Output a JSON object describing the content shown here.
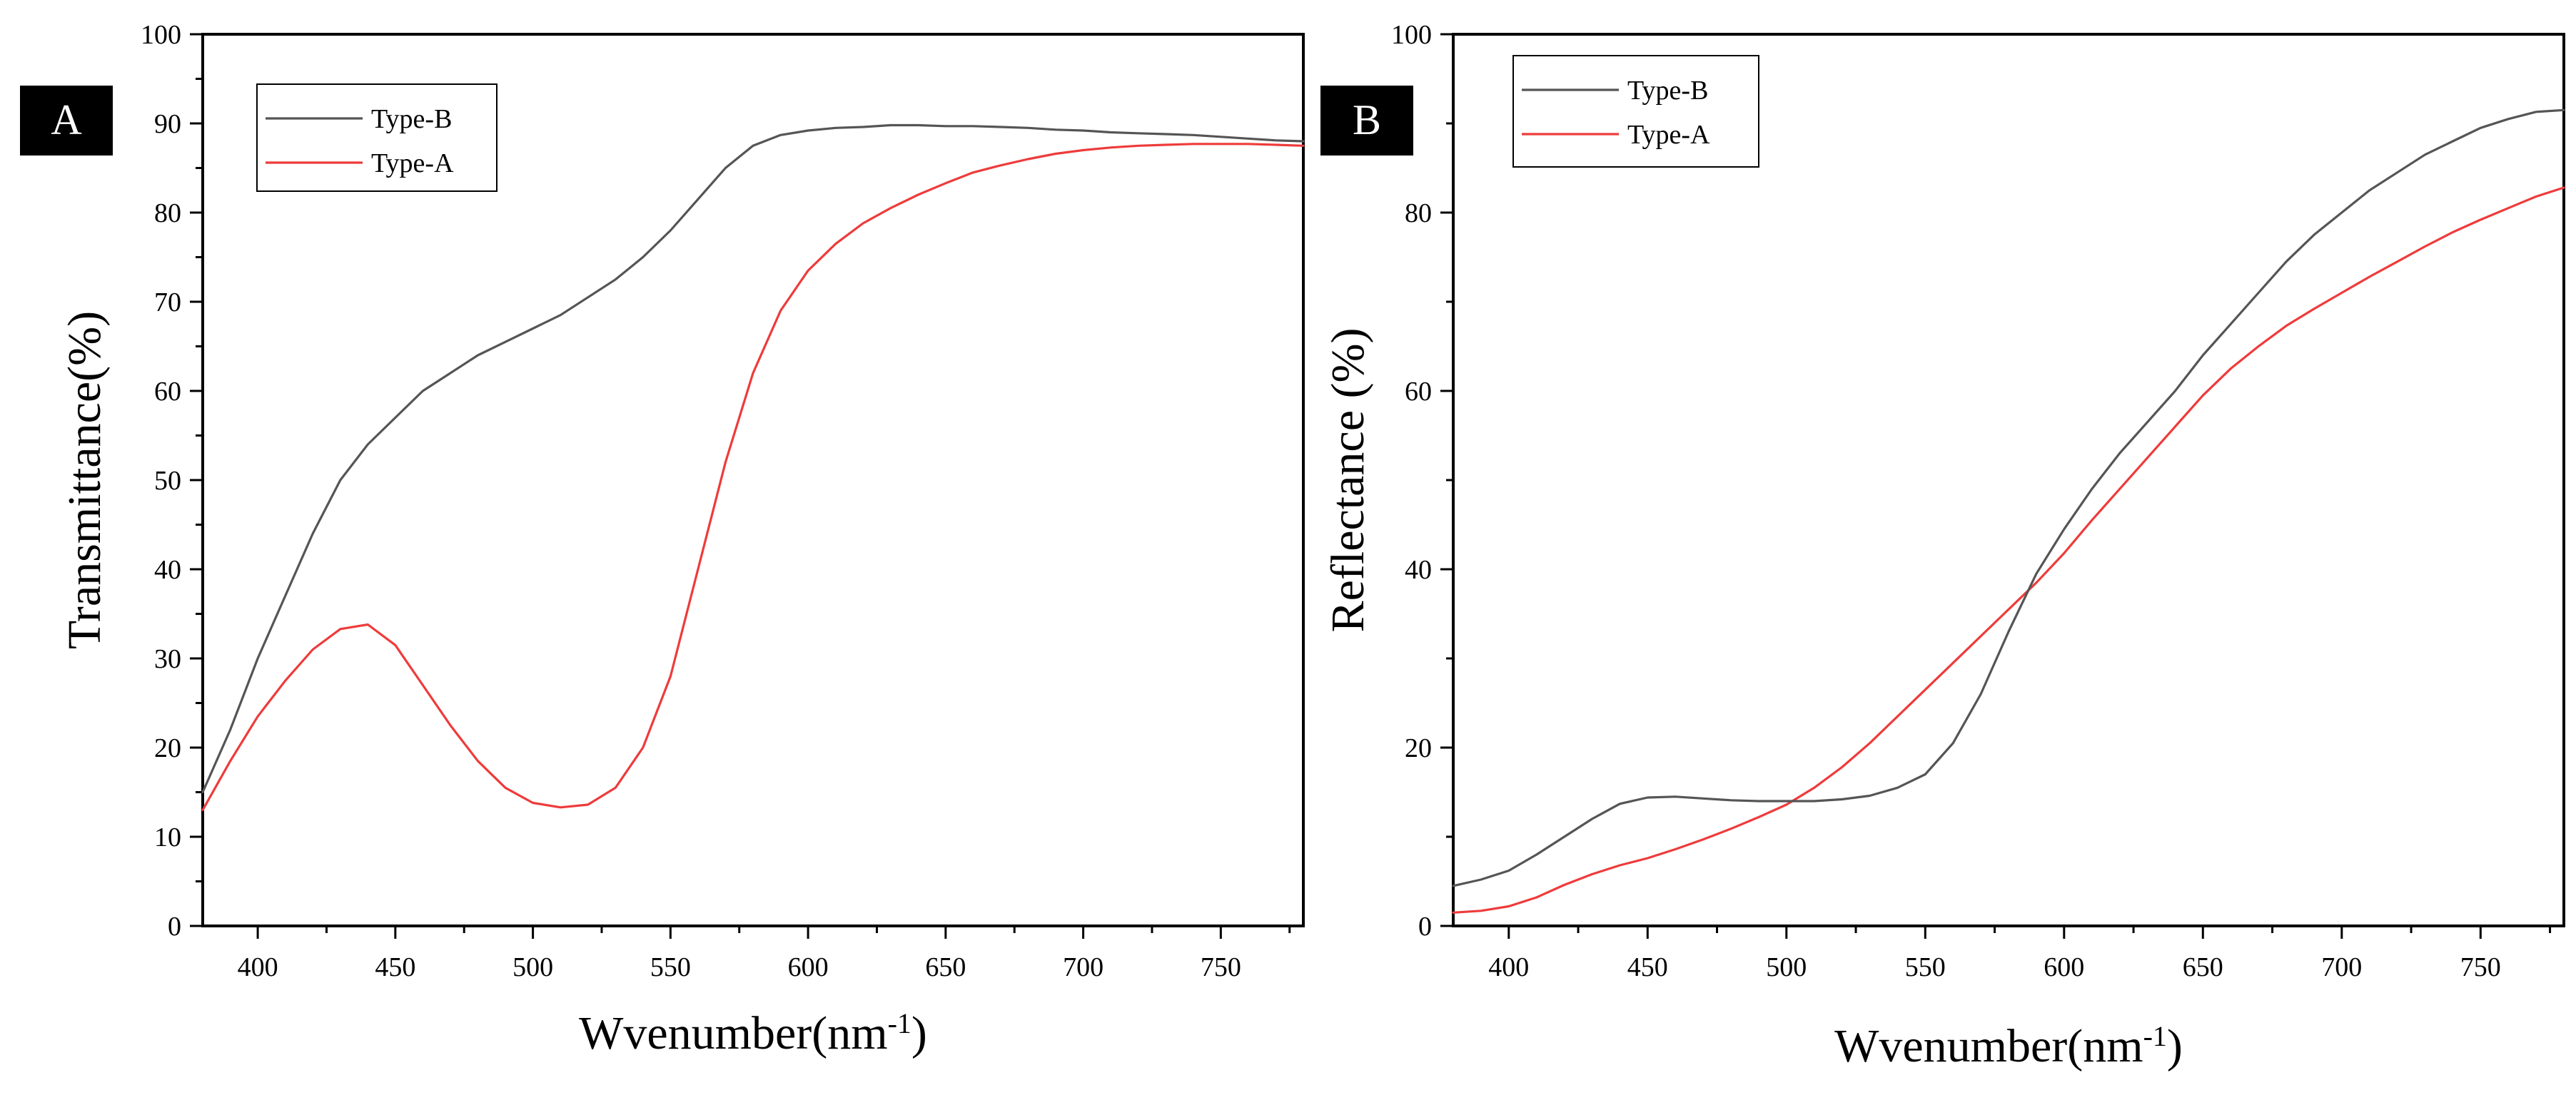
{
  "chart_data": [
    {
      "type": "line",
      "panel_label": "A",
      "title": "",
      "xlabel": "Wvenumber(nm-1)",
      "xlabel_main": "Wvenumber(nm",
      "xlabel_sup": "-1",
      "xlabel_close": ")",
      "ylabel": "Transmittance(%)",
      "xlim": [
        380,
        780
      ],
      "ylim": [
        0,
        100
      ],
      "xticks": [
        400,
        450,
        500,
        550,
        600,
        650,
        700,
        750
      ],
      "yticks": [
        0,
        10,
        20,
        30,
        40,
        50,
        60,
        70,
        80,
        90,
        100
      ],
      "legend_position": "top-left",
      "series": [
        {
          "name": "Type-B",
          "color": "#555555",
          "x": [
            380,
            390,
            400,
            410,
            420,
            430,
            440,
            450,
            460,
            470,
            480,
            490,
            500,
            510,
            520,
            530,
            540,
            550,
            560,
            570,
            580,
            590,
            600,
            610,
            620,
            630,
            640,
            650,
            660,
            670,
            680,
            690,
            700,
            710,
            720,
            730,
            740,
            750,
            760,
            770,
            780
          ],
          "y": [
            15,
            22,
            30,
            37,
            44,
            50,
            54,
            57,
            60,
            62,
            64,
            65.5,
            67,
            68.5,
            70.5,
            72.5,
            75,
            78,
            81.5,
            85,
            87.5,
            88.7,
            89.2,
            89.5,
            89.6,
            89.8,
            89.8,
            89.7,
            89.7,
            89.6,
            89.5,
            89.3,
            89.2,
            89.0,
            88.9,
            88.8,
            88.7,
            88.5,
            88.3,
            88.1,
            88
          ]
        },
        {
          "name": "Type-A",
          "color": "#ee3b3b",
          "x": [
            380,
            390,
            400,
            410,
            420,
            430,
            440,
            450,
            460,
            470,
            480,
            490,
            500,
            510,
            520,
            530,
            540,
            550,
            560,
            570,
            580,
            590,
            600,
            610,
            620,
            630,
            640,
            650,
            660,
            670,
            680,
            690,
            700,
            710,
            720,
            730,
            740,
            750,
            760,
            770,
            780
          ],
          "y": [
            13,
            18.5,
            23.5,
            27.5,
            31,
            33.3,
            33.8,
            31.5,
            27,
            22.5,
            18.5,
            15.5,
            13.8,
            13.3,
            13.6,
            15.5,
            20,
            28,
            40,
            52,
            62,
            69,
            73.5,
            76.5,
            78.8,
            80.5,
            82,
            83.3,
            84.5,
            85.3,
            86,
            86.6,
            87,
            87.3,
            87.5,
            87.6,
            87.7,
            87.7,
            87.7,
            87.6,
            87.5
          ]
        }
      ]
    },
    {
      "type": "line",
      "panel_label": "B",
      "title": "",
      "xlabel": "Wvenumber(nm-1)",
      "xlabel_main": "Wvenumber(nm",
      "xlabel_sup": "-1",
      "xlabel_close": ")",
      "ylabel": "Reflectance (%)",
      "xlim": [
        380,
        780
      ],
      "ylim": [
        0,
        100
      ],
      "xticks": [
        400,
        450,
        500,
        550,
        600,
        650,
        700,
        750
      ],
      "yticks": [
        0,
        20,
        40,
        60,
        80,
        100
      ],
      "legend_position": "top-left",
      "series": [
        {
          "name": "Type-B",
          "color": "#555555",
          "x": [
            380,
            390,
            400,
            410,
            420,
            430,
            440,
            450,
            460,
            470,
            480,
            490,
            500,
            510,
            520,
            530,
            540,
            550,
            560,
            570,
            580,
            590,
            600,
            610,
            620,
            630,
            640,
            650,
            660,
            670,
            680,
            690,
            700,
            710,
            720,
            730,
            740,
            750,
            760,
            770,
            780
          ],
          "y": [
            4.5,
            5.2,
            6.2,
            8,
            10,
            12,
            13.7,
            14.4,
            14.5,
            14.3,
            14.1,
            14,
            14,
            14,
            14.2,
            14.6,
            15.5,
            17,
            20.5,
            26,
            33,
            39.5,
            44.5,
            49,
            53,
            56.5,
            60,
            64,
            67.5,
            71,
            74.5,
            77.5,
            80,
            82.5,
            84.5,
            86.5,
            88,
            89.5,
            90.5,
            91.3,
            91.5
          ]
        },
        {
          "name": "Type-A",
          "color": "#ee3b3b",
          "x": [
            380,
            390,
            400,
            410,
            420,
            430,
            440,
            450,
            460,
            470,
            480,
            490,
            500,
            510,
            520,
            530,
            540,
            550,
            560,
            570,
            580,
            590,
            600,
            610,
            620,
            630,
            640,
            650,
            660,
            670,
            680,
            690,
            700,
            710,
            720,
            730,
            740,
            750,
            760,
            770,
            780
          ],
          "y": [
            1.5,
            1.7,
            2.2,
            3.2,
            4.6,
            5.8,
            6.8,
            7.6,
            8.6,
            9.7,
            10.9,
            12.2,
            13.6,
            15.5,
            17.8,
            20.5,
            23.5,
            26.5,
            29.5,
            32.5,
            35.5,
            38.5,
            41.8,
            45.5,
            49,
            52.5,
            56,
            59.5,
            62.5,
            65,
            67.3,
            69.2,
            71,
            72.8,
            74.5,
            76.2,
            77.8,
            79.2,
            80.5,
            81.8,
            82.8
          ]
        }
      ]
    }
  ]
}
